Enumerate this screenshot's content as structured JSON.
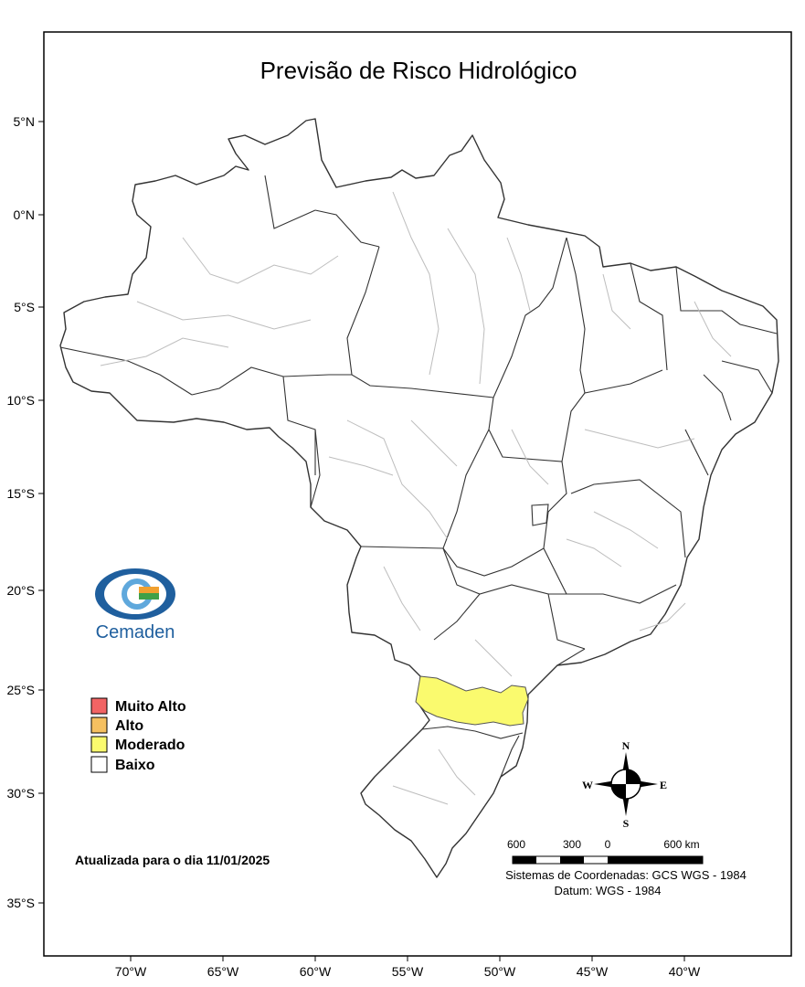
{
  "title": "Previsão de Risco Hidrológico",
  "latitude_labels": [
    "5°N",
    "0°N",
    "5°S",
    "10°S",
    "15°S",
    "20°S",
    "25°S",
    "30°S",
    "35°S"
  ],
  "longitude_labels": [
    "70°W",
    "65°W",
    "60°W",
    "55°W",
    "50°W",
    "45°W",
    "40°W"
  ],
  "logo": {
    "name": "Cemaden",
    "icon": "cemaden-eye-logo"
  },
  "legend": [
    {
      "label": "Muito Alto",
      "color": "#f26464"
    },
    {
      "label": "Alto",
      "color": "#f5c060"
    },
    {
      "label": "Moderado",
      "color": "#fafa6e"
    },
    {
      "label": "Baixo",
      "color": "#ffffff"
    }
  ],
  "updated": "Atualizada para o dia 11/01/2025",
  "compass": {
    "n": "N",
    "s": "S",
    "e": "E",
    "w": "W"
  },
  "scale_bar": {
    "labels": [
      "600",
      "300",
      "0",
      "600 km"
    ]
  },
  "coordinate_system": "Sistemas de Coordenadas: GCS WGS - 1984",
  "datum": "Datum: WGS - 1984",
  "highlighted_regions": [
    {
      "region": "Paraná - Santa Catarina border basins",
      "risk": "Moderado"
    }
  ]
}
